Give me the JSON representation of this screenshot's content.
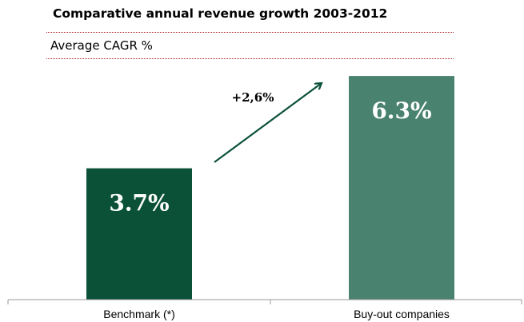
{
  "title": "Comparative annual revenue growth 2003-2012",
  "subtitle": "Average CAGR %",
  "annotation": "+2,6%",
  "colors": {
    "benchmark": "#0b5138",
    "buyout": "#4a8270",
    "arrow": "#0b5138",
    "rule": "#b22222"
  },
  "chart_data": {
    "type": "bar",
    "categories": [
      "Benchmark (*)",
      "Buy-out companies"
    ],
    "values": [
      3.7,
      6.3
    ],
    "data_labels": [
      "3.7%",
      "6.3%"
    ],
    "ylim": [
      0,
      7
    ],
    "grid": false,
    "annotation": "+2,6%"
  }
}
